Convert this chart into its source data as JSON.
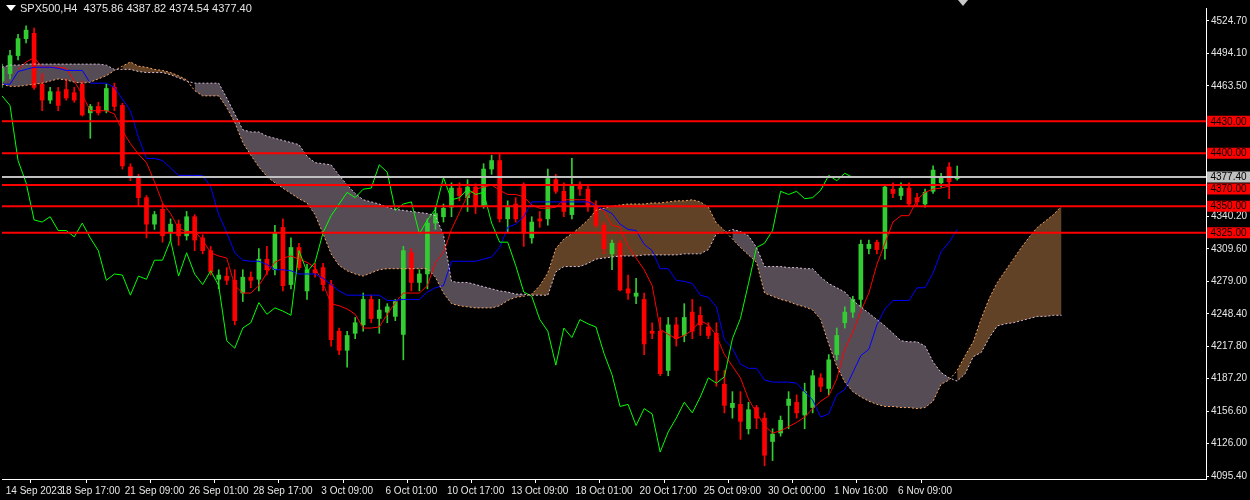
{
  "chart_data": {
    "type": "candlestick",
    "title": "SPX500,H4  4375.86 4387.82 4374.54 4377.40",
    "categories": [
      null,
      null,
      null,
      null,
      "14 Sep 2023",
      null,
      null,
      null,
      null,
      null,
      null,
      "18 Sep 17:00",
      null,
      null,
      null,
      null,
      null,
      null,
      null,
      "21 Sep 09:00",
      null,
      null,
      null,
      null,
      null,
      null,
      null,
      "26 Sep 01:00",
      null,
      null,
      null,
      null,
      null,
      null,
      null,
      "28 Sep 17:00",
      null,
      null,
      null,
      null,
      null,
      null,
      null,
      "3 Oct 09:00",
      null,
      null,
      null,
      null,
      null,
      null,
      null,
      "6 Oct 01:00",
      null,
      null,
      null,
      null,
      null,
      null,
      null,
      "10 Oct 17:00",
      null,
      null,
      null,
      null,
      null,
      null,
      null,
      "13 Oct 09:00",
      null,
      null,
      null,
      null,
      null,
      null,
      null,
      "18 Oct 01:00",
      null,
      null,
      null,
      null,
      null,
      null,
      null,
      "20 Oct 17:00",
      null,
      null,
      null,
      null,
      null,
      null,
      null,
      "25 Oct 09:00",
      null,
      null,
      null,
      null,
      null,
      null,
      null,
      "30 Oct 00:00",
      null,
      null,
      null,
      null,
      null,
      null,
      null,
      "1 Nov 16:00",
      null,
      null,
      null,
      null,
      null,
      null,
      null,
      "6 Nov 09:00",
      null,
      null,
      null,
      null,
      null,
      null,
      null,
      null,
      null,
      null,
      null,
      null,
      null,
      null,
      null,
      null,
      null,
      null,
      null,
      null,
      null,
      null,
      null,
      null,
      null,
      null,
      null,
      null,
      null,
      null,
      null,
      null,
      null,
      null,
      null
    ],
    "ohlc": [
      [
        4468,
        4484,
        4462,
        4480
      ],
      [
        4475,
        4497,
        4470,
        4492
      ],
      [
        4492,
        4512,
        4488,
        4508
      ],
      [
        4508,
        4520,
        4504,
        4516
      ],
      [
        4513,
        4518,
        4460,
        4462
      ],
      [
        4465,
        4475,
        4440,
        4450
      ],
      [
        4450,
        4462,
        4447,
        4458
      ],
      [
        4458,
        4462,
        4440,
        4445
      ],
      [
        4460,
        4470,
        4450,
        4452
      ],
      [
        4457,
        4462,
        4448,
        4450
      ],
      [
        4465,
        4468,
        4435,
        4436
      ],
      [
        4438,
        4446,
        4414,
        4444
      ],
      [
        4444,
        4448,
        4436,
        4438
      ],
      [
        4440,
        4465,
        4438,
        4461
      ],
      [
        4462,
        4466,
        4440,
        4444
      ],
      [
        4445,
        4447,
        4385,
        4388
      ],
      [
        4387,
        4390,
        4374,
        4377
      ],
      [
        4378,
        4380,
        4350,
        4358
      ],
      [
        4358,
        4360,
        4320,
        4333
      ],
      [
        4333,
        4345,
        4328,
        4342
      ],
      [
        4347,
        4352,
        4316,
        4322
      ],
      [
        4325,
        4338,
        4318,
        4333
      ],
      [
        4333,
        4337,
        4313,
        4322
      ],
      [
        4322,
        4345,
        4318,
        4340
      ],
      [
        4340,
        4342,
        4308,
        4318
      ],
      [
        4320,
        4323,
        4305,
        4308
      ],
      [
        4308,
        4312,
        4285,
        4288
      ],
      [
        4281,
        4290,
        4272,
        4285
      ],
      [
        4284,
        4292,
        4276,
        4280
      ],
      [
        4280,
        4290,
        4238,
        4242
      ],
      [
        4268,
        4290,
        4260,
        4283
      ],
      [
        4283,
        4288,
        4273,
        4280
      ],
      [
        4281,
        4310,
        4270,
        4300
      ],
      [
        4300,
        4312,
        4285,
        4290
      ],
      [
        4290,
        4332,
        4285,
        4325
      ],
      [
        4330,
        4338,
        4270,
        4275
      ],
      [
        4276,
        4320,
        4272,
        4311
      ],
      [
        4311,
        4315,
        4290,
        4292
      ],
      [
        4270,
        4295,
        4262,
        4290
      ],
      [
        4290,
        4296,
        4283,
        4287
      ],
      [
        4292,
        4296,
        4270,
        4276
      ],
      [
        4276,
        4280,
        4218,
        4224
      ],
      [
        4232,
        4235,
        4210,
        4214
      ],
      [
        4214,
        4232,
        4198,
        4228
      ],
      [
        4230,
        4245,
        4225,
        4240
      ],
      [
        4238,
        4268,
        4232,
        4262
      ],
      [
        4262,
        4266,
        4240,
        4244
      ],
      [
        4244,
        4262,
        4230,
        4252
      ],
      [
        4250,
        4258,
        4240,
        4255
      ],
      [
        4246,
        4262,
        4242,
        4260
      ],
      [
        4229,
        4312,
        4205,
        4308
      ],
      [
        4306,
        4310,
        4270,
        4278
      ],
      [
        4278,
        4290,
        4270,
        4286
      ],
      [
        4286,
        4338,
        4272,
        4334
      ],
      [
        4334,
        4350,
        4328,
        4343
      ],
      [
        4340,
        4352,
        4335,
        4348
      ],
      [
        4349,
        4372,
        4340,
        4367
      ],
      [
        4367,
        4372,
        4355,
        4360
      ],
      [
        4358,
        4375,
        4345,
        4368
      ],
      [
        4368,
        4371,
        4343,
        4350
      ],
      [
        4350,
        4390,
        4348,
        4385
      ],
      [
        4385,
        4398,
        4380,
        4393
      ],
      [
        4393,
        4400,
        4335,
        4338
      ],
      [
        4338,
        4355,
        4325,
        4350
      ],
      [
        4352,
        4358,
        4335,
        4338
      ],
      [
        4370,
        4372,
        4312,
        4325
      ],
      [
        4320,
        4340,
        4315,
        4335
      ],
      [
        4338,
        4345,
        4330,
        4336
      ],
      [
        4338,
        4385,
        4332,
        4376
      ],
      [
        4375,
        4380,
        4362,
        4364
      ],
      [
        4364,
        4372,
        4340,
        4345
      ],
      [
        4342,
        4395,
        4338,
        4370
      ],
      [
        4370,
        4373,
        4360,
        4366
      ],
      [
        4366,
        4370,
        4345,
        4350
      ],
      [
        4350,
        4355,
        4330,
        4332
      ],
      [
        4332,
        4335,
        4305,
        4310
      ],
      [
        4305,
        4318,
        4290,
        4315
      ],
      [
        4315,
        4318,
        4270,
        4271
      ],
      [
        4272,
        4285,
        4262,
        4268
      ],
      [
        4265,
        4282,
        4258,
        4268
      ],
      [
        4262,
        4268,
        4210,
        4220
      ],
      [
        4232,
        4240,
        4225,
        4230
      ],
      [
        4232,
        4245,
        4190,
        4192
      ],
      [
        4195,
        4245,
        4190,
        4238
      ],
      [
        4238,
        4245,
        4218,
        4225
      ],
      [
        4228,
        4258,
        4222,
        4245
      ],
      [
        4250,
        4262,
        4225,
        4232
      ],
      [
        4247,
        4255,
        4228,
        4238
      ],
      [
        4236,
        4240,
        4225,
        4228
      ],
      [
        4230,
        4240,
        4180,
        4195
      ],
      [
        4182,
        4195,
        4155,
        4162
      ],
      [
        4160,
        4175,
        4150,
        4164
      ],
      [
        4163,
        4175,
        4130,
        4147
      ],
      [
        4140,
        4165,
        4135,
        4158
      ],
      [
        4160,
        4162,
        4140,
        4150
      ],
      [
        4150,
        4155,
        4105,
        4115
      ],
      [
        4128,
        4140,
        4110,
        4135
      ],
      [
        4136,
        4152,
        4133,
        4148
      ],
      [
        4162,
        4175,
        4140,
        4168
      ],
      [
        4165,
        4172,
        4150,
        4155
      ],
      [
        4153,
        4183,
        4140,
        4175
      ],
      [
        4160,
        4195,
        4155,
        4190
      ],
      [
        4188,
        4192,
        4175,
        4180
      ],
      [
        4178,
        4210,
        4172,
        4205
      ],
      [
        4210,
        4235,
        4205,
        4228
      ],
      [
        4240,
        4255,
        4235,
        4250
      ],
      [
        4250,
        4265,
        4245,
        4262
      ],
      [
        4262,
        4318,
        4255,
        4314
      ],
      [
        4310,
        4318,
        4305,
        4314
      ],
      [
        4316,
        4318,
        4305,
        4309
      ],
      [
        4310,
        4370,
        4300,
        4368
      ],
      [
        4366,
        4372,
        4358,
        4362
      ],
      [
        4360,
        4372,
        4356,
        4367
      ],
      [
        4367,
        4372,
        4350,
        4352
      ],
      [
        4358,
        4362,
        4350,
        4354
      ],
      [
        4352,
        4366,
        4349,
        4363
      ],
      [
        4364,
        4388,
        4362,
        4384
      ],
      [
        4372,
        4381,
        4368,
        4378
      ],
      [
        4387,
        4391,
        4357,
        4373
      ],
      [
        4375.86,
        4387.82,
        4374.54,
        4377.4
      ],
      null,
      null,
      null,
      null,
      null,
      null,
      null,
      null,
      null,
      null,
      null,
      null,
      null,
      null,
      null,
      null,
      null,
      null,
      null,
      null,
      null,
      null,
      null,
      null,
      null,
      null,
      null,
      null,
      null,
      null,
      null
    ],
    "series": [
      {
        "type": "line",
        "color": "#f4a460",
        "line_style": "dotted",
        "lower": [
          null,
          null,
          null,
          null,
          null,
          null,
          null,
          null,
          null,
          null,
          null,
          null,
          null,
          null,
          null,
          4479,
          4479,
          4477,
          4476,
          4476,
          4476,
          4474,
          4471,
          4468,
          null,
          null,
          null,
          null,
          null,
          null,
          null,
          null,
          null,
          null,
          null,
          null,
          null,
          null,
          null,
          null,
          null,
          null,
          null,
          null,
          null,
          null,
          null,
          null,
          null,
          null,
          null,
          null,
          null,
          null,
          null,
          null,
          null,
          null,
          null,
          null,
          null,
          null,
          null,
          null,
          null,
          null,
          4266,
          4266,
          4266,
          4288,
          4293,
          4293,
          4293,
          4296,
          4300,
          4301,
          4302,
          4303,
          4303,
          4303,
          4304,
          4304,
          4304,
          4304,
          4304,
          4305,
          4305,
          4305,
          4309,
          4324,
          4325,
          null,
          null,
          null,
          null,
          null,
          null,
          null,
          null,
          null,
          null,
          null,
          null,
          null,
          null,
          null,
          null,
          null,
          null,
          null,
          null,
          null,
          null,
          null,
          null,
          null,
          null,
          null,
          null,
          4185,
          4192,
          4208,
          4212,
          4226,
          4237,
          4239,
          4240,
          4242,
          4244,
          4246,
          4246,
          4247,
          4247,
          null,
          null,
          null,
          null,
          null,
          null,
          null,
          null,
          null,
          null,
          null,
          null,
          null,
          null,
          null,
          null,
          null,
          null
        ],
        "upper": [
          null,
          null,
          null,
          null,
          null,
          null,
          null,
          null,
          null,
          null,
          null,
          null,
          null,
          null,
          null,
          4482,
          4486,
          4482,
          4481,
          4479,
          4478,
          4476,
          4473,
          4469,
          null,
          null,
          null,
          null,
          null,
          null,
          null,
          null,
          null,
          null,
          null,
          null,
          null,
          null,
          null,
          null,
          null,
          null,
          null,
          null,
          null,
          null,
          null,
          null,
          null,
          null,
          null,
          null,
          null,
          null,
          null,
          null,
          null,
          null,
          null,
          null,
          null,
          null,
          null,
          null,
          null,
          null,
          4267,
          4275,
          4287,
          4310,
          4319,
          4324,
          4330,
          4337,
          4346,
          4348,
          4350,
          4351,
          4352,
          4352,
          4352,
          4353,
          4353,
          4354,
          4355,
          4355,
          4356,
          4354,
          4349,
          4334,
          4327,
          null,
          null,
          null,
          null,
          null,
          null,
          null,
          null,
          null,
          null,
          null,
          null,
          null,
          null,
          null,
          null,
          null,
          null,
          null,
          null,
          null,
          null,
          null,
          null,
          null,
          null,
          null,
          null,
          4195,
          4209,
          4222,
          4244,
          4263,
          4278,
          4289,
          4300,
          4311,
          4321,
          4330,
          4336,
          4342,
          4350,
          null,
          null,
          null,
          null,
          null,
          null,
          null,
          null,
          null,
          null,
          null,
          null,
          null,
          null,
          null,
          null,
          null,
          null
        ],
        "values": [
          4465,
          4463,
          4463,
          4464,
          4465,
          4466,
          4468,
          4470,
          4469,
          4467,
          4466,
          4467,
          4470,
          4473,
          4478,
          4482,
          4486,
          4482,
          4481,
          4479,
          4478,
          4476,
          4473,
          4469,
          4459,
          4454,
          4454,
          4454,
          4443,
          4429,
          4410,
          4398,
          4387,
          4378,
          4372,
          4367,
          4362,
          4357,
          4353,
          4342,
          4324,
          4305,
          4294,
          4289,
          4286,
          4284,
          4287,
          4290,
          4291,
          4291,
          4291,
          4291,
          4291,
          4291,
          4283,
          4268,
          4258,
          4256,
          4255,
          4254,
          4254,
          4254,
          4256,
          4261,
          4264,
          4265,
          4267,
          4275,
          4287,
          4310,
          4319,
          4324,
          4330,
          4337,
          4346,
          4348,
          4350,
          4351,
          4352,
          4352,
          4352,
          4353,
          4353,
          4354,
          4355,
          4355,
          4356,
          4354,
          4349,
          4334,
          4327,
          4319,
          4311,
          4304,
          4297,
          4268,
          4265,
          4262,
          4260,
          4257,
          4255,
          4252,
          4243,
          4220,
          4199,
          4184,
          4175,
          4170,
          4166,
          4163,
          4161,
          4161,
          4160,
          4160,
          4159,
          4160,
          4166,
          4182,
          4186,
          4195,
          4209,
          4222,
          4244,
          4263,
          4278,
          4289,
          4300,
          4311,
          4321,
          4330,
          4336,
          4342,
          4350,
          null,
          null,
          null,
          null,
          null,
          null,
          null,
          null,
          null,
          null,
          null,
          null,
          null,
          null,
          null,
          null,
          null,
          null
        ]
      },
      {
        "type": "line",
        "color": "#d8bfd8",
        "line_style": "dotted",
        "lower": [
          4465,
          4463,
          4463,
          4464,
          4465,
          4466,
          4468,
          4470,
          4469,
          4467,
          4466,
          4467,
          4470,
          4473,
          4478,
          null,
          null,
          null,
          null,
          null,
          null,
          null,
          null,
          null,
          4459,
          4454,
          4454,
          4454,
          4443,
          4429,
          4410,
          4398,
          4387,
          4378,
          4372,
          4367,
          4362,
          4357,
          4353,
          4342,
          4324,
          4305,
          4294,
          4289,
          4286,
          4284,
          4287,
          4290,
          4291,
          4291,
          4291,
          4291,
          4291,
          4291,
          4283,
          4268,
          4258,
          4256,
          4255,
          4254,
          4254,
          4254,
          4256,
          4261,
          4264,
          4265,
          null,
          null,
          null,
          null,
          null,
          null,
          null,
          null,
          null,
          null,
          null,
          null,
          null,
          null,
          null,
          null,
          null,
          null,
          null,
          null,
          null,
          null,
          null,
          null,
          null,
          4319,
          4311,
          4304,
          4297,
          4268,
          4265,
          4262,
          4260,
          4257,
          4255,
          4252,
          4243,
          4220,
          4199,
          4184,
          4175,
          4170,
          4166,
          4163,
          4161,
          4161,
          4160,
          4160,
          4159,
          4160,
          4166,
          4182,
          4186,
          null,
          null,
          null,
          null,
          null,
          null,
          null,
          null,
          null,
          null,
          null,
          null,
          null,
          null,
          null,
          null,
          null,
          null,
          null,
          null,
          null,
          null,
          null,
          null,
          null,
          null,
          null,
          null,
          null,
          null,
          null,
          null
        ],
        "upper": [
          4481,
          4483,
          4483,
          4484,
          4484,
          4484,
          4484,
          4484,
          4484,
          4484,
          4484,
          4484,
          4484,
          4483,
          4479,
          null,
          null,
          null,
          null,
          null,
          null,
          null,
          null,
          null,
          4466,
          4466,
          4466,
          4466,
          4452,
          4437,
          4422,
          4420,
          4420,
          4416,
          4414,
          4412,
          4410,
          4408,
          4397,
          4391,
          4390,
          4389,
          4379,
          4370,
          4362,
          4356,
          4354,
          4352,
          4349,
          4347,
          4346,
          4345,
          4344,
          4343,
          4341,
          4323,
          4279,
          4278,
          4278,
          4276,
          4274,
          4272,
          4270,
          4269,
          4267,
          4267,
          null,
          null,
          null,
          null,
          null,
          null,
          null,
          null,
          null,
          null,
          null,
          null,
          null,
          null,
          null,
          null,
          null,
          null,
          null,
          null,
          null,
          null,
          null,
          null,
          null,
          4328,
          4326,
          4322,
          4311,
          4293,
          4293,
          4293,
          4292,
          4292,
          4291,
          4291,
          4283,
          4277,
          4273,
          4269,
          4261,
          4255,
          4249,
          4243,
          4237,
          4230,
          4223,
          4222,
          4222,
          4218,
          4203,
          4193,
          4188,
          null,
          null,
          null,
          null,
          null,
          null,
          null,
          null,
          null,
          null,
          null,
          null,
          null,
          null,
          null,
          null,
          null,
          null,
          null,
          null,
          null,
          null,
          null,
          null,
          null,
          null,
          null,
          null,
          null,
          null,
          null,
          null
        ],
        "values": [
          4481,
          4483,
          4483,
          4484,
          4484,
          4484,
          4484,
          4484,
          4484,
          4484,
          4484,
          4484,
          4484,
          4483,
          4479,
          4479,
          4479,
          4477,
          4476,
          4476,
          4476,
          4474,
          4471,
          4468,
          4466,
          4466,
          4466,
          4466,
          4452,
          4437,
          4422,
          4420,
          4420,
          4416,
          4414,
          4412,
          4410,
          4408,
          4397,
          4391,
          4390,
          4389,
          4379,
          4370,
          4362,
          4356,
          4354,
          4352,
          4349,
          4347,
          4346,
          4345,
          4344,
          4343,
          4341,
          4323,
          4279,
          4278,
          4278,
          4276,
          4274,
          4272,
          4270,
          4269,
          4267,
          4267,
          4266,
          4266,
          4266,
          4288,
          4293,
          4293,
          4293,
          4296,
          4300,
          4301,
          4302,
          4303,
          4303,
          4303,
          4304,
          4304,
          4304,
          4304,
          4304,
          4305,
          4305,
          4305,
          4309,
          4324,
          4325,
          4328,
          4326,
          4322,
          4311,
          4293,
          4293,
          4293,
          4292,
          4292,
          4291,
          4291,
          4283,
          4277,
          4273,
          4269,
          4261,
          4255,
          4249,
          4243,
          4237,
          4230,
          4223,
          4222,
          4222,
          4218,
          4203,
          4193,
          4188,
          4185,
          4192,
          4208,
          4212,
          4226,
          4237,
          4239,
          4240,
          4242,
          4244,
          4246,
          4246,
          4247,
          4247,
          null,
          null,
          null,
          null,
          null,
          null,
          null,
          null,
          null,
          null,
          null,
          null,
          null,
          null,
          null,
          null,
          null,
          null
        ]
      },
      {
        "type": "line",
        "color": "#00ff00",
        "values": [
          4454,
          4445,
          4393,
          4372,
          4337,
          4335,
          4340,
          4327,
          4327,
          4321,
          4334,
          4320,
          4308,
          4280,
          4286,
          4285,
          4266,
          4284,
          4281,
          4299,
          4299,
          4318,
          4284,
          4306,
          4286,
          4276,
          4289,
          4275,
          4223,
          4216,
          4235,
          4240,
          4259,
          4248,
          4254,
          4251,
          4247,
          4308,
          4288,
          4297,
          4325,
          4341,
          4352,
          4363,
          4358,
          4366,
          4367,
          4389,
          4382,
          4346,
          4352,
          4354,
          4324,
          4337,
          4347,
          4377,
          4356,
          4358,
          4366,
          4361,
          4363,
          4334,
          4316,
          4316,
          4294,
          4269,
          4265,
          4243,
          4232,
          4200,
          4235,
          4226,
          4243,
          4239,
          4236,
          4211,
          4191,
          4161,
          4163,
          4143,
          4159,
          4154,
          4118,
          4137,
          4150,
          4165,
          4155,
          4170,
          4188,
          4183,
          4189,
          4225,
          4244,
          4277,
          4311,
          4315,
          4327,
          4364,
          4361,
          4364,
          4357,
          4358,
          4365,
          4379,
          4374,
          4381,
          4377,
          null,
          null,
          null,
          null,
          null,
          null,
          null,
          null,
          null,
          null,
          null,
          null,
          null,
          null,
          null,
          null,
          null,
          null,
          null,
          null,
          null,
          null,
          null,
          null,
          null,
          null,
          null,
          null,
          null,
          null,
          null,
          null,
          null,
          null,
          null,
          null,
          null,
          null,
          null,
          null,
          null,
          null,
          null,
          null
        ]
      },
      {
        "type": "line",
        "color": "#0000ff",
        "values": [
          4465,
          4465,
          4477,
          4479,
          4481,
          4481,
          4481,
          4480,
          4478,
          4478,
          4478,
          4466,
          4466,
          4466,
          4462,
          4451,
          4440,
          4415,
          4395,
          4395,
          4393,
          4386,
          4379,
          4379,
          4379,
          4379,
          4368,
          4342,
          4325,
          4306,
          4299,
          4298,
          4298,
          4295,
          4290,
          4290,
          4289,
          4286,
          4286,
          4286,
          4282,
          4276,
          4270,
          4266,
          4266,
          4266,
          4266,
          4266,
          4261,
          4261,
          4262,
          4262,
          4262,
          4269,
          4273,
          4275,
          4298,
          4298,
          4298,
          4298,
          4300,
          4302,
          4311,
          4330,
          4333,
          4340,
          4354,
          4354,
          4354,
          4354,
          4354,
          4354,
          4354,
          4354,
          4350,
          4347,
          4343,
          4333,
          4328,
          4327,
          4314,
          4308,
          4291,
          4291,
          4280,
          4279,
          4277,
          4266,
          4264,
          4255,
          4224,
          4216,
          4201,
          4197,
          4197,
          4186,
          4184,
          4184,
          4184,
          4183,
          4175,
          4167,
          4151,
          4154,
          4172,
          4177,
          4193,
          4209,
          4215,
          4238,
          4253,
          4261,
          4261,
          4261,
          4273,
          4273,
          4287,
          4307,
          4316,
          4328,
          null,
          null,
          null,
          null,
          null,
          null,
          null,
          null,
          null,
          null,
          null,
          null,
          null,
          null,
          null,
          null,
          null,
          null,
          null,
          null,
          null,
          null,
          null,
          null,
          null,
          null,
          null,
          null,
          null,
          null,
          null
        ]
      },
      {
        "type": "line",
        "color": "#ff0000",
        "values": [
          null,
          null,
          4479,
          4486,
          4490,
          4481,
          4481,
          4481,
          4480,
          4468,
          4455,
          4440,
          4440,
          4440,
          4437,
          4421,
          4409,
          4399,
          4391,
          4373,
          4353,
          4343,
          4329,
          4326,
          4326,
          4318,
          4306,
          4303,
          4301,
          4275,
          4268,
          4268,
          4275,
          4287,
          4297,
          4301,
          4303,
          4300,
          4297,
          4292,
          4277,
          4258,
          4256,
          4253,
          4248,
          4235,
          4235,
          4236,
          4248,
          4259,
          4268,
          4268,
          4268,
          4275,
          4297,
          4306,
          4328,
          4344,
          4360,
          4366,
          4368,
          4370,
          4365,
          4361,
          4361,
          4359,
          4351,
          4348,
          4348,
          4349,
          4356,
          4356,
          4356,
          4356,
          4351,
          4345,
          4332,
          4330,
          4312,
          4301,
          4290,
          4275,
          4234,
          4229,
          4225,
          4228,
          4233,
          4242,
          4238,
          4228,
          4210,
          4199,
          4188,
          4168,
          4155,
          4143,
          4136,
          4138,
          4142,
          4146,
          4151,
          4159,
          4166,
          4171,
          4187,
          4215,
          4231,
          4251,
          4268,
          4295,
          4315,
          4335,
          4341,
          4341,
          4356,
          4363,
          4366,
          4367,
          4369,
          null,
          null,
          null,
          null,
          null,
          null,
          null,
          null,
          null,
          null,
          null,
          null,
          null,
          null,
          null,
          null,
          null,
          null,
          null,
          null,
          null,
          null,
          null,
          null,
          null,
          null,
          null,
          null,
          null,
          null,
          null,
          null
        ]
      }
    ],
    "ylim": [
      4092.6,
      4536.9
    ],
    "yticks": [
      {
        "value": 4524.7,
        "label": "4524.70"
      },
      {
        "value": 4494.1,
        "label": "4494.10"
      },
      {
        "value": 4463.5,
        "label": "4463.50"
      },
      {
        "value": 4340.2,
        "label": "4340.20"
      },
      {
        "value": 4309.6,
        "label": "4309.60"
      },
      {
        "value": 4279,
        "label": "4279.00"
      },
      {
        "value": 4248.4,
        "label": "4248.40"
      },
      {
        "value": 4217.8,
        "label": "4217.80"
      },
      {
        "value": 4187.2,
        "label": "4187.20"
      },
      {
        "value": 4156.6,
        "label": "4156.60"
      },
      {
        "value": 4126,
        "label": "4126.00"
      },
      {
        "value": 4095.4,
        "label": "4095.40"
      }
    ],
    "ref_lines": [
      {
        "axis": "y",
        "value": 4377.4,
        "label": "4377.40",
        "color": "#c0c0c0"
      },
      {
        "axis": "y",
        "value": 4430,
        "label": "4430.00",
        "color": "#ff0000"
      },
      {
        "axis": "y",
        "value": 4400,
        "label": "4400.00",
        "color": "#ff0000"
      },
      {
        "axis": "y",
        "value": 4370,
        "label": "4370.00",
        "color": "#ff0000"
      },
      {
        "axis": "y",
        "value": 4350,
        "label": "4350.00",
        "color": "#ff0000"
      },
      {
        "axis": "y",
        "value": 4325,
        "label": "4325.00",
        "color": "#ff0000"
      }
    ],
    "grid": false,
    "legend": false
  }
}
